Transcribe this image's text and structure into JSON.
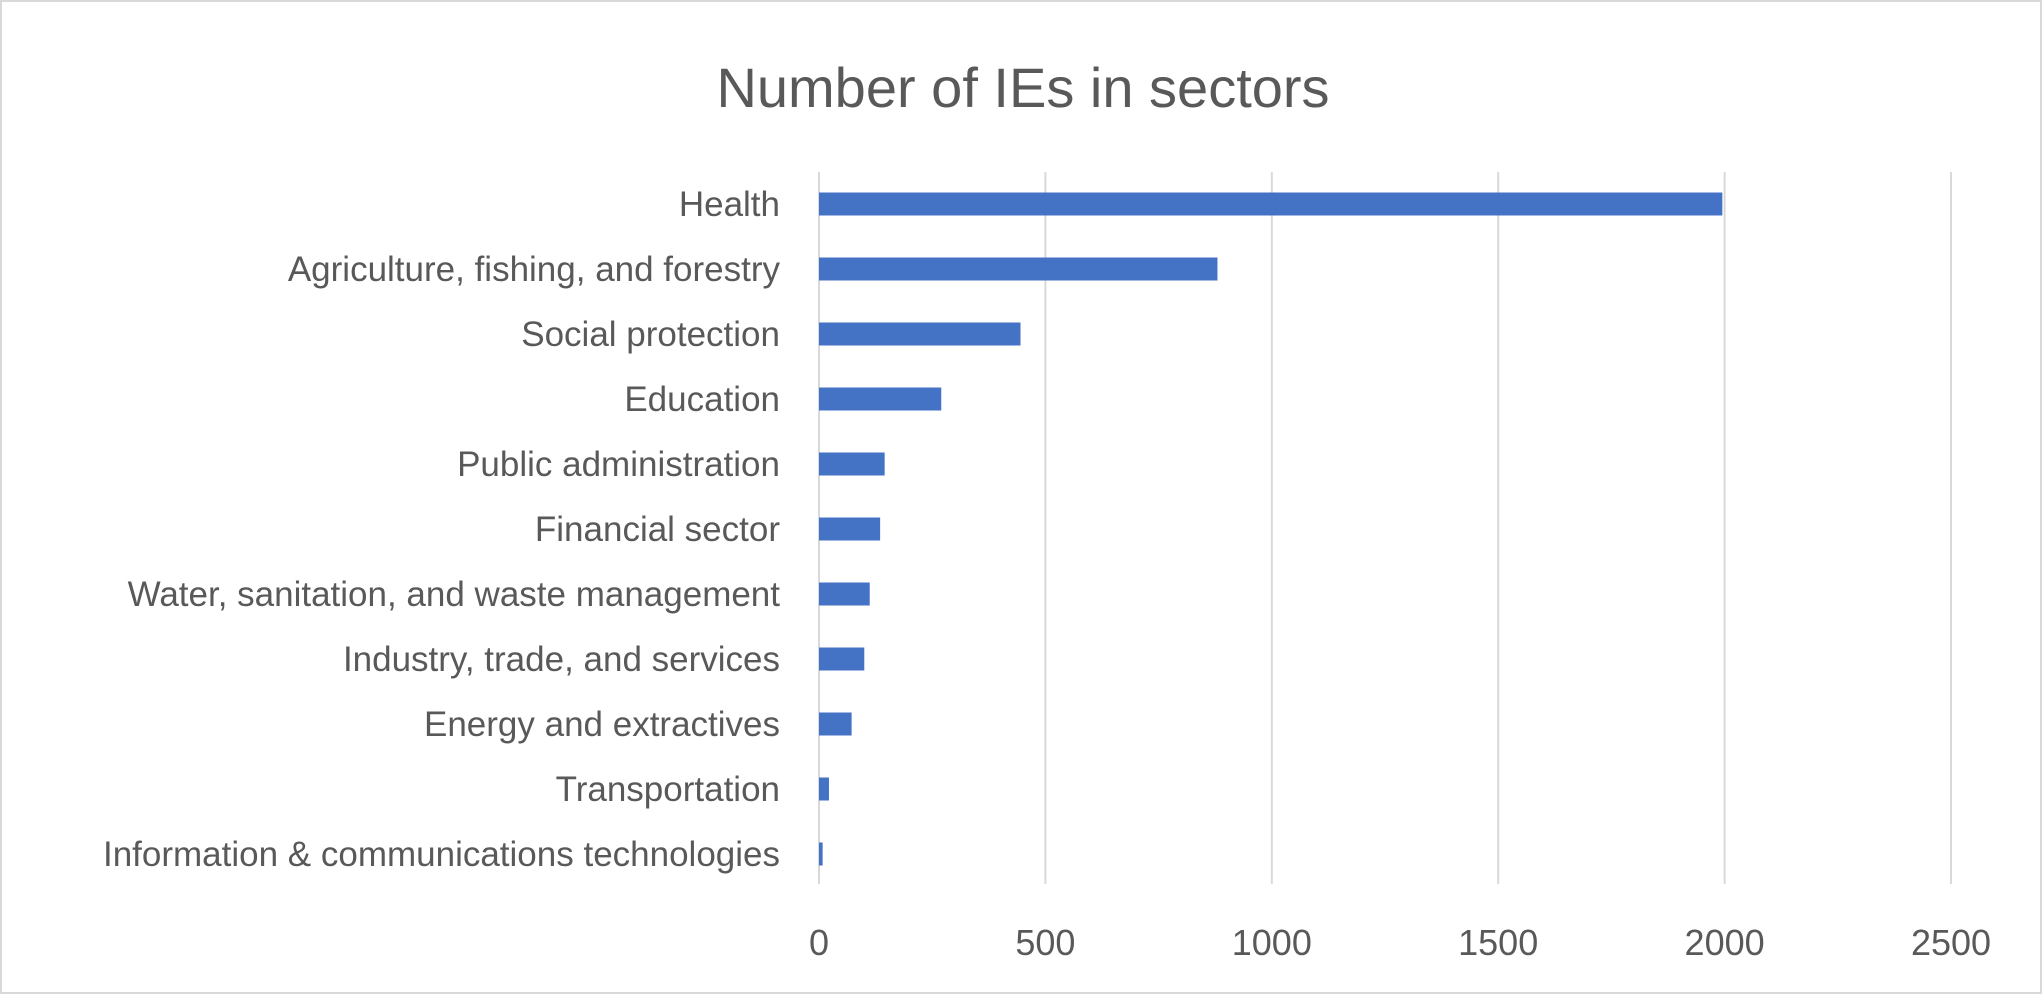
{
  "chart_data": {
    "type": "bar",
    "orientation": "horizontal",
    "title": "Number of IEs in sectors",
    "categories": [
      "Health",
      "Agriculture, fishing, and forestry",
      "Social protection",
      "Education",
      "Public administration",
      "Financial sector",
      "Water, sanitation, and waste management",
      "Industry, trade, and services",
      "Energy and extractives",
      "Transportation",
      "Information & communications technologies"
    ],
    "values": [
      1995,
      880,
      445,
      270,
      145,
      135,
      112,
      100,
      72,
      22,
      8
    ],
    "xlim": [
      0,
      2500
    ],
    "xticks": [
      0,
      500,
      1000,
      1500,
      2000,
      2500
    ],
    "xlabel": "",
    "ylabel": "",
    "grid": true,
    "legend": "none",
    "bar_color": "#4472c4"
  }
}
